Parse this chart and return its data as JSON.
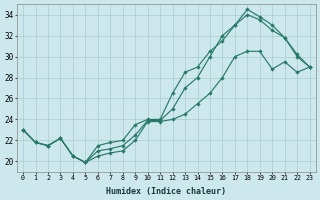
{
  "xlabel": "Humidex (Indice chaleur)",
  "bg_color": "#cce8ec",
  "grid_color": "#aacccc",
  "line_color": "#2a7a6a",
  "xlim": [
    -0.5,
    23.5
  ],
  "ylim": [
    19.0,
    35.0
  ],
  "yticks": [
    20,
    22,
    24,
    26,
    28,
    30,
    32,
    34
  ],
  "xticks": [
    0,
    1,
    2,
    3,
    4,
    5,
    6,
    7,
    8,
    9,
    10,
    11,
    12,
    13,
    14,
    15,
    16,
    17,
    18,
    19,
    20,
    21,
    22,
    23
  ],
  "line1_x": [
    0,
    1,
    2,
    3,
    4,
    5,
    6,
    7,
    8,
    9,
    10,
    11,
    12,
    13,
    14,
    15,
    16,
    17,
    18,
    19,
    20,
    21,
    22,
    23
  ],
  "line1_y": [
    23.0,
    21.8,
    21.5,
    22.2,
    20.5,
    19.9,
    20.5,
    20.8,
    21.0,
    22.0,
    23.8,
    23.8,
    24.0,
    24.5,
    25.5,
    26.5,
    28.0,
    30.0,
    30.5,
    30.5,
    28.8,
    29.5,
    28.5,
    29.0
  ],
  "line2_x": [
    0,
    1,
    2,
    3,
    4,
    5,
    6,
    7,
    8,
    9,
    10,
    11,
    12,
    13,
    14,
    15,
    16,
    17,
    18,
    19,
    20,
    21,
    22,
    23
  ],
  "line2_y": [
    23.0,
    21.8,
    21.5,
    22.2,
    20.5,
    19.9,
    21.5,
    21.8,
    22.0,
    23.5,
    24.0,
    24.0,
    26.5,
    28.5,
    29.0,
    30.5,
    31.5,
    33.0,
    34.5,
    33.8,
    33.0,
    31.8,
    30.2,
    29.0
  ],
  "line3_x": [
    0,
    1,
    2,
    3,
    4,
    5,
    6,
    7,
    8,
    9,
    10,
    11,
    12,
    13,
    14,
    15,
    16,
    17,
    18,
    19,
    20,
    21,
    22,
    23
  ],
  "line3_y": [
    23.0,
    21.8,
    21.5,
    22.2,
    20.5,
    19.9,
    21.0,
    21.2,
    21.5,
    22.5,
    23.9,
    23.9,
    25.0,
    27.0,
    28.0,
    30.0,
    32.0,
    33.0,
    34.0,
    33.5,
    32.5,
    31.8,
    30.0,
    29.0
  ]
}
